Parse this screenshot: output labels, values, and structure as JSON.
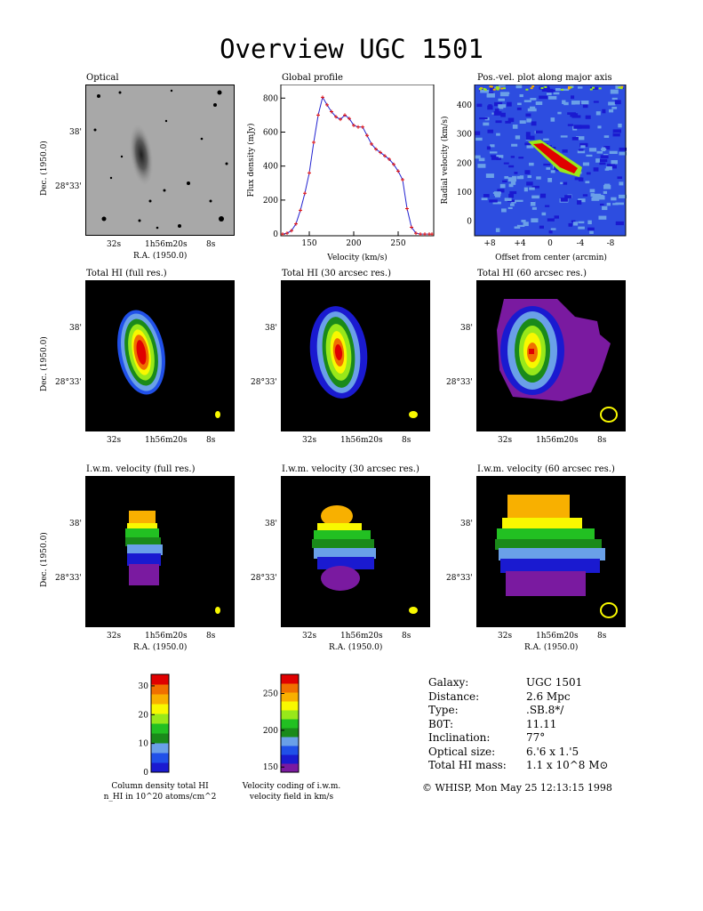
{
  "title": "Overview UGC 1501",
  "panels": {
    "optical": "Optical",
    "global_profile": "Global profile",
    "posvel": "Pos.-vel. plot along major axis",
    "total_full": "Total HI (full res.)",
    "total_30": "Total HI (30 arcsec res.)",
    "total_60": "Total HI (60 arcsec res.)",
    "vel_full": "I.w.m. velocity (full res.)",
    "vel_30": "I.w.m. velocity (30 arcsec res.)",
    "vel_60": "I.w.m. velocity (60 arcsec res.)"
  },
  "axes": {
    "ra_label": "R.A. (1950.0)",
    "dec_label": "Dec. (1950.0)",
    "ra_ticks": [
      "32s",
      "1h56m20s",
      "8s"
    ],
    "dec_ticks": [
      "38'",
      "28°33'"
    ],
    "profile_xlabel": "Velocity (km/s)",
    "profile_ylabel": "Flux density (mJy)",
    "posvel_xlabel": "Offset from center (arcmin)",
    "posvel_ylabel": "Radial velocity (km/s)"
  },
  "chart_data": [
    {
      "type": "line",
      "title": "Global profile",
      "xlabel": "Velocity (km/s)",
      "ylabel": "Flux density (mJy)",
      "xlim": [
        118,
        290
      ],
      "ylim": [
        -10,
        880
      ],
      "xticks": [
        150,
        200,
        250
      ],
      "yticks": [
        0,
        200,
        400,
        600,
        800
      ],
      "series": [
        {
          "x": [
            120,
            125,
            130,
            135,
            140,
            145,
            150,
            155,
            160,
            165,
            170,
            175,
            180,
            185,
            190,
            195,
            200,
            205,
            210,
            215,
            220,
            225,
            230,
            235,
            240,
            245,
            250,
            255,
            260,
            265,
            270,
            275,
            280,
            285,
            288
          ],
          "y": [
            0,
            5,
            20,
            60,
            140,
            240,
            360,
            540,
            700,
            805,
            760,
            720,
            690,
            675,
            700,
            680,
            640,
            630,
            630,
            580,
            530,
            500,
            480,
            460,
            440,
            410,
            370,
            320,
            150,
            40,
            5,
            0,
            0,
            0,
            0
          ]
        }
      ]
    },
    {
      "type": "heatmap",
      "title": "Pos.-vel. plot along major axis",
      "xlabel": "Offset from center (arcmin)",
      "ylabel": "Radial velocity (km/s)",
      "xticks": [
        "+8",
        "+4",
        "0",
        "-4",
        "-8"
      ],
      "yticks": [
        0,
        100,
        200,
        300,
        400
      ],
      "ylim": [
        -50,
        470
      ]
    }
  ],
  "colorbars": {
    "density": {
      "ticks": [
        "0",
        "10",
        "20",
        "30"
      ],
      "caption_line1": "Column density total HI",
      "caption_line2": "n_HI in 10^20 atoms/cm^2",
      "colors": [
        "#1a1ad0",
        "#2050e8",
        "#6aa0e8",
        "#1a8a1a",
        "#22c022",
        "#98e81a",
        "#f8f800",
        "#f8b000",
        "#f07000",
        "#e00000"
      ]
    },
    "velocity": {
      "ticks": [
        "150",
        "200",
        "250"
      ],
      "caption_line1": "Velocity coding of i.w.m.",
      "caption_line2": "velocity field in km/s",
      "colors": [
        "#7a1aa0",
        "#1a1ad0",
        "#2050e8",
        "#6aa0e8",
        "#1a8a1a",
        "#22c022",
        "#98e81a",
        "#f8f800",
        "#f8b000",
        "#f07000",
        "#e00000"
      ]
    }
  },
  "info": {
    "rows": [
      {
        "k": "Galaxy:",
        "v": "UGC 1501"
      },
      {
        "k": "Distance:",
        "v": "2.6 Mpc"
      },
      {
        "k": "Type:",
        "v": ".SB.8*/"
      },
      {
        "k": "B0T:",
        "v": "11.11"
      },
      {
        "k": "Inclination:",
        "v": "77°"
      },
      {
        "k": "Optical size:",
        "v": "6.'6 x 1.'5"
      },
      {
        "k": "Total HI mass:",
        "v": "1.1 x 10^8 M⊙"
      }
    ],
    "footer": "© WHISP, Mon May 25 12:13:15 1998"
  }
}
